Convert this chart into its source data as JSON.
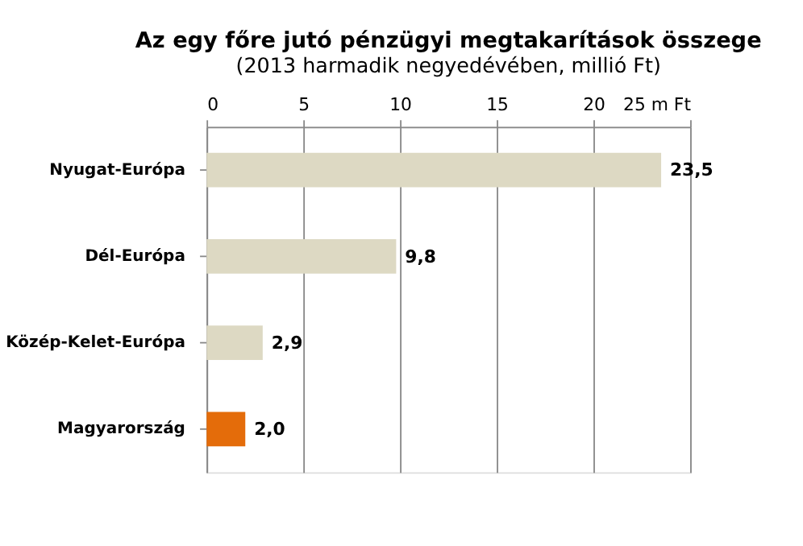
{
  "chart_data": {
    "type": "bar",
    "orientation": "horizontal",
    "title": "Az egy főre jutó pénzügyi megtakarítások összege",
    "subtitle": "(2013 harmadik negyedévében, millió Ft)",
    "categories": [
      "Nyugat-Európa",
      "Dél-Európa",
      "Közép-Kelet-Európa",
      "Magyarország"
    ],
    "values": [
      23.5,
      9.8,
      2.9,
      2.0
    ],
    "colors": [
      "#ddd9c3",
      "#ddd9c3",
      "#ddd9c3",
      "#e46c0a"
    ],
    "value_labels": [
      "23,5",
      "9,8",
      "2,9",
      "2,0"
    ],
    "xlim": [
      0,
      25
    ],
    "xticks": [
      0,
      5,
      10,
      15,
      20,
      {
        "value": 25,
        "label": "25 m Ft"
      }
    ],
    "grid": "x"
  }
}
